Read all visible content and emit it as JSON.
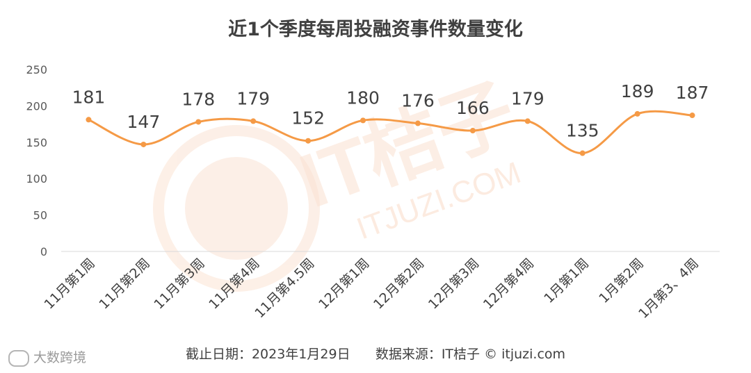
{
  "title": "近1个季度每周投融资事件数量变化",
  "footer": {
    "date_text": "截止日期：2023年1月29日",
    "source_text": "数据来源：IT桔子 © itjuzi.com"
  },
  "watermark": {
    "brand": "IT桔子",
    "site": "ITJUZI.COM",
    "corner_logo": "大数跨境"
  },
  "colors": {
    "line": "#F59A46",
    "grid": "#D9D9D9",
    "watermark": "#FBE3D4"
  },
  "chart_data": {
    "type": "line",
    "smooth": true,
    "categories": [
      "11月第1周",
      "11月第2周",
      "11月第3周",
      "11月第4周",
      "11月第4.5周",
      "12月第1周",
      "12月第2周",
      "12月第3周",
      "12月第4周",
      "1月第1周",
      "1月第2周",
      "1月第3、4周"
    ],
    "values": [
      181,
      147,
      178,
      179,
      152,
      180,
      176,
      166,
      179,
      135,
      189,
      187
    ],
    "ylim": [
      0,
      250
    ],
    "yticks": [
      0,
      50,
      100,
      150,
      200,
      250
    ],
    "grid": false,
    "legend": "none",
    "data_labels": true
  }
}
